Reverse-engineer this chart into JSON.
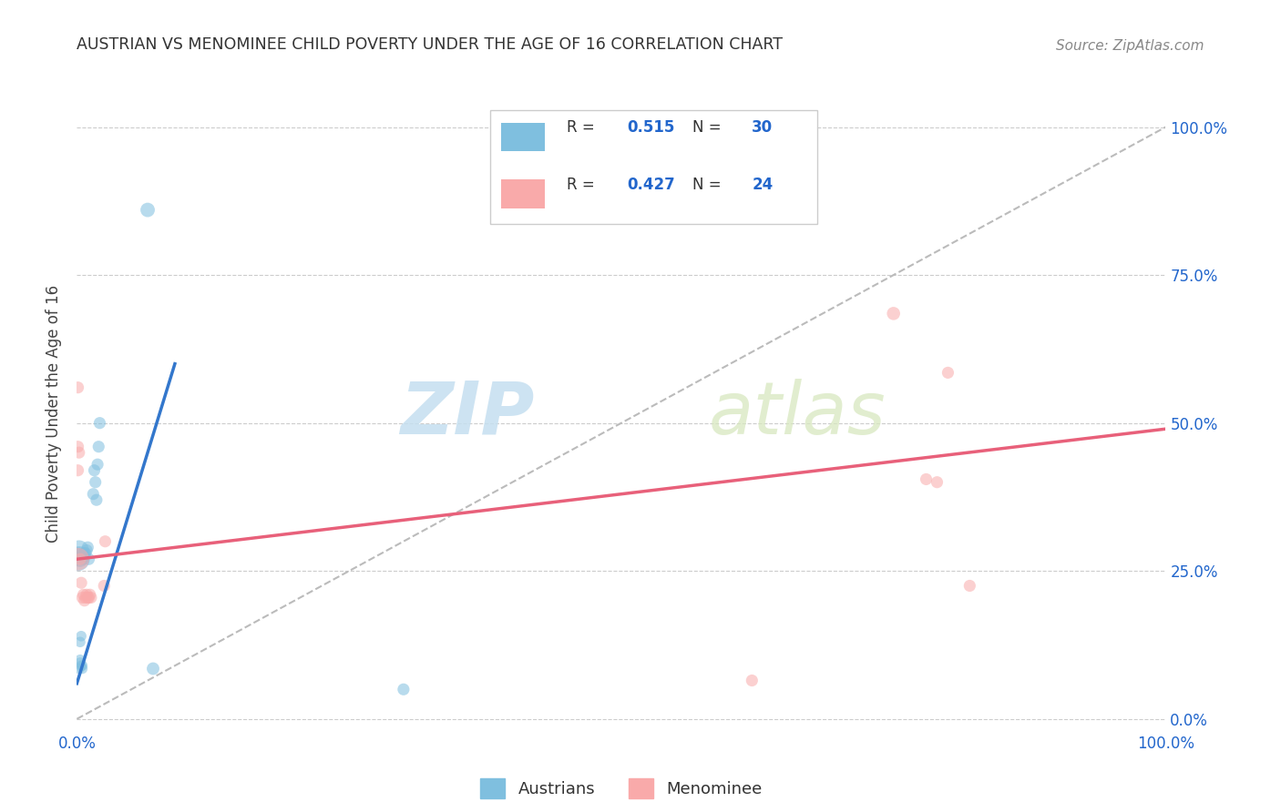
{
  "title": "AUSTRIAN VS MENOMINEE CHILD POVERTY UNDER THE AGE OF 16 CORRELATION CHART",
  "source": "Source: ZipAtlas.com",
  "ylabel": "Child Poverty Under the Age of 16",
  "watermark_zip": "ZIP",
  "watermark_atlas": "atlas",
  "legend_blue_r": "0.515",
  "legend_blue_n": "30",
  "legend_pink_r": "0.427",
  "legend_pink_n": "24",
  "xlim": [
    0.0,
    1.0
  ],
  "ylim": [
    -0.02,
    1.05
  ],
  "xticks": [
    0.0,
    0.25,
    0.5,
    0.75,
    1.0
  ],
  "yticks": [
    0.0,
    0.25,
    0.5,
    0.75,
    1.0
  ],
  "xticklabels": [
    "0.0%",
    "",
    "",
    "",
    "100.0%"
  ],
  "yticklabels_right": [
    "0.0%",
    "25.0%",
    "50.0%",
    "75.0%",
    "100.0%"
  ],
  "blue_color": "#7fbfdf",
  "pink_color": "#f9aaaa",
  "blue_line_color": "#3377cc",
  "pink_line_color": "#e8607a",
  "diagonal_color": "#bbbbbb",
  "grid_color": "#cccccc",
  "austrians": [
    [
      0.002,
      0.085
    ],
    [
      0.003,
      0.1
    ],
    [
      0.004,
      0.09
    ],
    [
      0.003,
      0.13
    ],
    [
      0.004,
      0.14
    ],
    [
      0.005,
      0.085
    ],
    [
      0.005,
      0.09
    ],
    [
      0.003,
      0.095
    ],
    [
      0.002,
      0.275
    ],
    [
      0.002,
      0.285
    ],
    [
      0.001,
      0.27
    ],
    [
      0.003,
      0.27
    ],
    [
      0.004,
      0.275
    ],
    [
      0.005,
      0.275
    ],
    [
      0.006,
      0.27
    ],
    [
      0.007,
      0.28
    ],
    [
      0.008,
      0.28
    ],
    [
      0.009,
      0.285
    ],
    [
      0.01,
      0.29
    ],
    [
      0.011,
      0.27
    ],
    [
      0.015,
      0.38
    ],
    [
      0.016,
      0.42
    ],
    [
      0.017,
      0.4
    ],
    [
      0.018,
      0.37
    ],
    [
      0.019,
      0.43
    ],
    [
      0.02,
      0.46
    ],
    [
      0.021,
      0.5
    ],
    [
      0.065,
      0.86
    ],
    [
      0.07,
      0.085
    ],
    [
      0.3,
      0.05
    ]
  ],
  "austrians_size": [
    70,
    70,
    70,
    70,
    70,
    70,
    70,
    70,
    250,
    250,
    350,
    160,
    130,
    110,
    90,
    90,
    90,
    90,
    90,
    90,
    90,
    90,
    90,
    90,
    90,
    90,
    90,
    130,
    100,
    90
  ],
  "menominee": [
    [
      0.001,
      0.56
    ],
    [
      0.001,
      0.46
    ],
    [
      0.001,
      0.42
    ],
    [
      0.002,
      0.45
    ],
    [
      0.003,
      0.27
    ],
    [
      0.004,
      0.23
    ],
    [
      0.005,
      0.205
    ],
    [
      0.006,
      0.21
    ],
    [
      0.007,
      0.2
    ],
    [
      0.008,
      0.205
    ],
    [
      0.009,
      0.21
    ],
    [
      0.01,
      0.205
    ],
    [
      0.011,
      0.205
    ],
    [
      0.012,
      0.21
    ],
    [
      0.013,
      0.205
    ],
    [
      0.025,
      0.225
    ],
    [
      0.026,
      0.3
    ],
    [
      0.001,
      0.27
    ],
    [
      0.75,
      0.685
    ],
    [
      0.8,
      0.585
    ],
    [
      0.78,
      0.405
    ],
    [
      0.79,
      0.4
    ],
    [
      0.82,
      0.225
    ],
    [
      0.62,
      0.065
    ]
  ],
  "menominee_size": [
    90,
    90,
    90,
    90,
    90,
    90,
    90,
    90,
    90,
    90,
    90,
    90,
    90,
    90,
    90,
    90,
    90,
    320,
    110,
    90,
    90,
    90,
    90,
    90
  ],
  "aus_line_x": [
    0.0,
    0.09
  ],
  "aus_line_y": [
    0.06,
    0.6
  ],
  "men_line_x": [
    0.0,
    1.0
  ],
  "men_line_y": [
    0.27,
    0.49
  ]
}
